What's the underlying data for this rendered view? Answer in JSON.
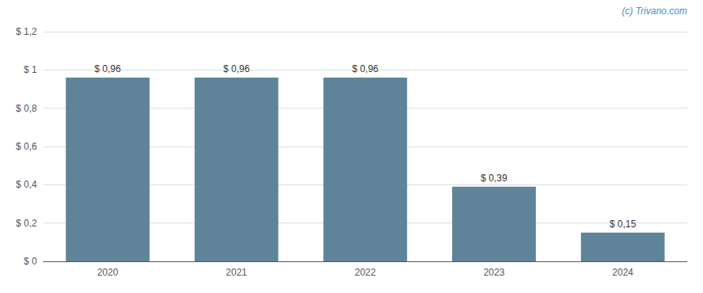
{
  "chart_data": {
    "type": "bar",
    "categories": [
      "2020",
      "2021",
      "2022",
      "2023",
      "2024"
    ],
    "values": [
      0.96,
      0.96,
      0.96,
      0.39,
      0.15
    ],
    "value_labels": [
      "$ 0,96",
      "$ 0,96",
      "$ 0,96",
      "$ 0,39",
      "$ 0,15"
    ],
    "data_labels": true,
    "color": "#5f8398",
    "ylim": [
      0,
      1.2
    ],
    "yticks": [
      {
        "value": 0,
        "label": "$ 0"
      },
      {
        "value": 0.2,
        "label": "$ 0,2"
      },
      {
        "value": 0.4,
        "label": "$ 0,4"
      },
      {
        "value": 0.6,
        "label": "$ 0,6"
      },
      {
        "value": 0.8,
        "label": "$ 0,8"
      },
      {
        "value": 1.0,
        "label": "$ 1"
      },
      {
        "value": 1.2,
        "label": "$ 1,2"
      }
    ],
    "grid": true,
    "annotations": [
      "(c) Trivano.com"
    ]
  }
}
